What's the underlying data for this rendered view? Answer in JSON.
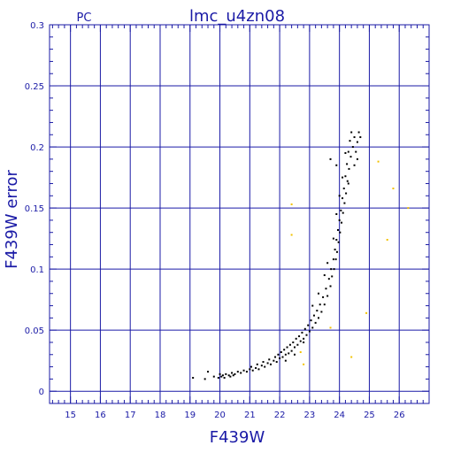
{
  "chart_data": {
    "type": "scatter",
    "title": "lmc_u4zn08",
    "corner_label": "PC",
    "xlabel": "F439W",
    "ylabel": "F439W error",
    "xlim": [
      14.3,
      27.0
    ],
    "ylim": [
      -0.01,
      0.3
    ],
    "x_ticks": [
      15,
      16,
      17,
      18,
      19,
      20,
      21,
      22,
      23,
      24,
      25,
      26
    ],
    "y_ticks": [
      0,
      0.05,
      0.1,
      0.15,
      0.2,
      0.25,
      0.3
    ],
    "y_tick_labels": [
      "0",
      "0.05",
      "0.1",
      "0.15",
      "0.2",
      "0.25",
      "0.3"
    ],
    "grid": true,
    "colors": {
      "axes": "#1a1aa6",
      "grid": "#1a1aa6",
      "main_points": "#000000",
      "outlier_points": "#f2c200"
    },
    "series": [
      {
        "points": [
          [
            19.1,
            0.011
          ],
          [
            19.5,
            0.01
          ],
          [
            19.6,
            0.016
          ],
          [
            19.8,
            0.012
          ],
          [
            19.95,
            0.011
          ],
          [
            20.0,
            0.014
          ],
          [
            20.05,
            0.012
          ],
          [
            20.1,
            0.013
          ],
          [
            20.15,
            0.011
          ],
          [
            20.2,
            0.014
          ],
          [
            20.3,
            0.013
          ],
          [
            20.35,
            0.012
          ],
          [
            20.4,
            0.015
          ],
          [
            20.45,
            0.013
          ],
          [
            20.5,
            0.014
          ],
          [
            20.6,
            0.016
          ],
          [
            20.7,
            0.015
          ],
          [
            20.8,
            0.017
          ],
          [
            20.9,
            0.016
          ],
          [
            21.0,
            0.018
          ],
          [
            21.05,
            0.02
          ],
          [
            21.1,
            0.017
          ],
          [
            21.2,
            0.019
          ],
          [
            21.25,
            0.022
          ],
          [
            21.3,
            0.018
          ],
          [
            21.4,
            0.021
          ],
          [
            21.45,
            0.024
          ],
          [
            21.5,
            0.02
          ],
          [
            21.6,
            0.023
          ],
          [
            21.65,
            0.026
          ],
          [
            21.7,
            0.022
          ],
          [
            21.8,
            0.025
          ],
          [
            21.85,
            0.028
          ],
          [
            21.9,
            0.024
          ],
          [
            21.95,
            0.03
          ],
          [
            22.0,
            0.027
          ],
          [
            22.05,
            0.032
          ],
          [
            22.1,
            0.028
          ],
          [
            22.15,
            0.034
          ],
          [
            22.2,
            0.03
          ],
          [
            22.25,
            0.036
          ],
          [
            22.3,
            0.031
          ],
          [
            22.35,
            0.038
          ],
          [
            22.4,
            0.033
          ],
          [
            22.45,
            0.04
          ],
          [
            22.5,
            0.036
          ],
          [
            22.55,
            0.043
          ],
          [
            22.6,
            0.038
          ],
          [
            22.65,
            0.045
          ],
          [
            22.7,
            0.041
          ],
          [
            22.75,
            0.048
          ],
          [
            22.8,
            0.043
          ],
          [
            22.85,
            0.051
          ],
          [
            22.9,
            0.046
          ],
          [
            22.95,
            0.054
          ],
          [
            23.0,
            0.049
          ],
          [
            23.05,
            0.058
          ],
          [
            23.1,
            0.052
          ],
          [
            23.15,
            0.062
          ],
          [
            23.2,
            0.056
          ],
          [
            23.25,
            0.066
          ],
          [
            23.3,
            0.06
          ],
          [
            23.35,
            0.071
          ],
          [
            23.4,
            0.065
          ],
          [
            23.45,
            0.077
          ],
          [
            23.5,
            0.071
          ],
          [
            23.55,
            0.084
          ],
          [
            23.6,
            0.078
          ],
          [
            23.65,
            0.092
          ],
          [
            23.7,
            0.086
          ],
          [
            23.72,
            0.1
          ],
          [
            23.75,
            0.094
          ],
          [
            23.8,
            0.108
          ],
          [
            23.82,
            0.1
          ],
          [
            23.85,
            0.116
          ],
          [
            23.88,
            0.108
          ],
          [
            23.9,
            0.124
          ],
          [
            23.92,
            0.114
          ],
          [
            23.95,
            0.132
          ],
          [
            23.97,
            0.122
          ],
          [
            24.0,
            0.14
          ],
          [
            24.02,
            0.13
          ],
          [
            24.05,
            0.148
          ],
          [
            24.07,
            0.138
          ],
          [
            24.1,
            0.158
          ],
          [
            24.12,
            0.146
          ],
          [
            24.15,
            0.166
          ],
          [
            24.17,
            0.154
          ],
          [
            24.2,
            0.176
          ],
          [
            24.22,
            0.162
          ],
          [
            24.25,
            0.186
          ],
          [
            24.27,
            0.172
          ],
          [
            24.3,
            0.196
          ],
          [
            24.32,
            0.182
          ],
          [
            24.35,
            0.205
          ],
          [
            24.38,
            0.192
          ],
          [
            24.4,
            0.212
          ],
          [
            24.45,
            0.2
          ],
          [
            24.5,
            0.208
          ],
          [
            24.55,
            0.196
          ],
          [
            24.6,
            0.204
          ],
          [
            24.65,
            0.212
          ],
          [
            24.7,
            0.208
          ],
          [
            23.1,
            0.07
          ],
          [
            23.3,
            0.08
          ],
          [
            23.5,
            0.095
          ],
          [
            23.6,
            0.105
          ],
          [
            23.8,
            0.125
          ],
          [
            23.9,
            0.145
          ],
          [
            24.0,
            0.16
          ],
          [
            24.1,
            0.175
          ],
          [
            24.2,
            0.195
          ],
          [
            23.7,
            0.19
          ],
          [
            23.9,
            0.185
          ],
          [
            24.3,
            0.17
          ],
          [
            24.5,
            0.185
          ],
          [
            24.6,
            0.19
          ],
          [
            22.8,
            0.04
          ],
          [
            22.5,
            0.03
          ],
          [
            22.2,
            0.025
          ]
        ]
      },
      {
        "points": [
          [
            22.4,
            0.153
          ],
          [
            22.4,
            0.128
          ],
          [
            25.3,
            0.188
          ],
          [
            25.8,
            0.166
          ],
          [
            26.3,
            0.15
          ],
          [
            25.6,
            0.124
          ],
          [
            24.9,
            0.064
          ],
          [
            24.4,
            0.028
          ],
          [
            23.7,
            0.052
          ],
          [
            22.7,
            0.032
          ],
          [
            22.8,
            0.022
          ]
        ]
      }
    ]
  }
}
